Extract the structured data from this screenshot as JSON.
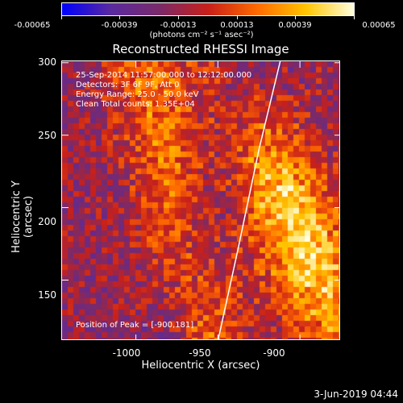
{
  "colorbar": {
    "ticks": [
      "-0.00065",
      "-0.00039",
      "-0.00013",
      "0.00013",
      "0.00039",
      "0.00065"
    ],
    "units": "(photons cm⁻² s⁻¹ asec⁻²)",
    "colors": [
      "#0000ff",
      "#5a2aa0",
      "#7a2a6a",
      "#c8201a",
      "#ff6a00",
      "#ffc400",
      "#ffffe0"
    ]
  },
  "plot": {
    "title": "Reconstructed RHESSI Image",
    "info_lines": [
      "25-Sep-2014 11:57:00.000 to 12:12:00.000",
      "Detectors: 3F 6F 9F, Att 0",
      "Energy Range: 25.0 - 50.0 keV",
      "Clean     Total counts: 1.35E+04"
    ],
    "peak_text": "Position of Peak = [-900,181]",
    "xlabel": "Heliocentric X (arcsec)",
    "ylabel": "Heliocentric Y (arcsec)"
  },
  "chart_data": {
    "type": "heatmap",
    "title": "Reconstructed RHESSI Image",
    "xlabel": "Heliocentric X (arcsec)",
    "ylabel": "Heliocentric Y (arcsec)",
    "xlim": [
      -1045,
      -875
    ],
    "ylim": [
      108,
      301
    ],
    "x_ticks": [
      "-1000",
      "-950",
      "-900"
    ],
    "x_tick_values": [
      -1000,
      -950,
      -900
    ],
    "y_ticks": [
      "150",
      "200",
      "250",
      "300"
    ],
    "y_tick_values": [
      150,
      200,
      250,
      300
    ],
    "colorbar_range": [
      -0.00065,
      0.00065
    ],
    "peak": [
      -900,
      181
    ],
    "limb_curve": [
      [
        -950,
        108
      ],
      [
        -938,
        170
      ],
      [
        -925,
        240
      ],
      [
        -912,
        301
      ]
    ]
  },
  "footer": {
    "timestamp": "3-Jun-2019 04:44"
  }
}
